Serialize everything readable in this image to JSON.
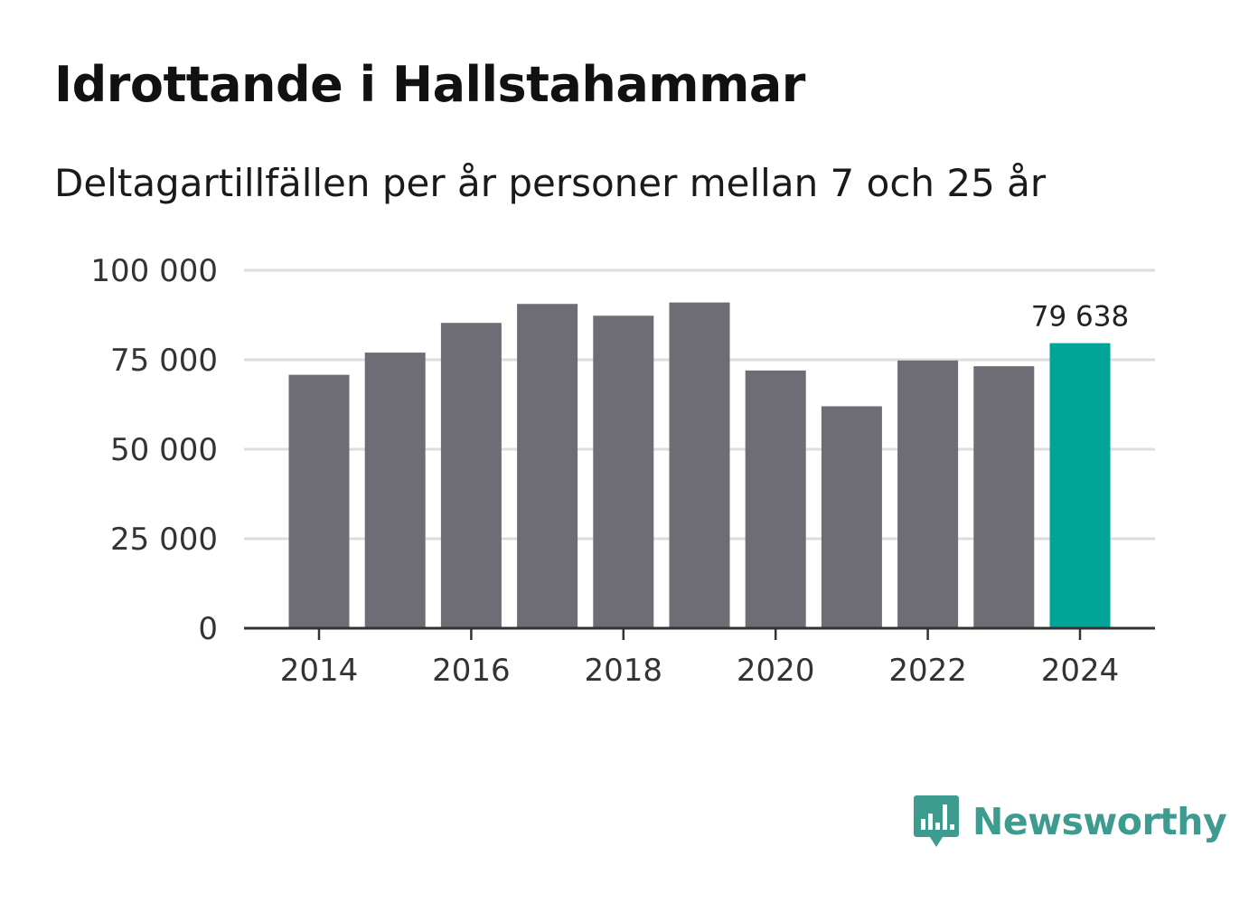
{
  "header": {
    "title": "Idrottande i Hallstahammar",
    "subtitle": "Deltagartillfällen per år personer mellan 7 och 25 år"
  },
  "colors": {
    "bar": "#6e6d75",
    "highlight": "#00a598",
    "grid": "#dddddd",
    "axis": "#333333",
    "brand": "#3d9b8f"
  },
  "chart_data": {
    "type": "bar",
    "title": "Idrottande i Hallstahammar",
    "subtitle": "Deltagartillfällen per år personer mellan 7 och 25 år",
    "xlabel": "",
    "ylabel": "",
    "categories": [
      "2014",
      "2015",
      "2016",
      "2017",
      "2018",
      "2019",
      "2020",
      "2021",
      "2022",
      "2023",
      "2024"
    ],
    "values": [
      70800,
      77000,
      85300,
      90600,
      87300,
      91000,
      72000,
      62000,
      74800,
      73200,
      79638
    ],
    "ylim": [
      0,
      100000
    ],
    "yticks": [
      0,
      25000,
      50000,
      75000,
      100000
    ],
    "ytick_labels": [
      "0",
      "25 000",
      "50 000",
      "75 000",
      "100 000"
    ],
    "xtick_labels": [
      "2014",
      "2016",
      "2018",
      "2020",
      "2022",
      "2024"
    ],
    "highlight_category": "2024",
    "annotation": "79 638",
    "grid": true
  },
  "brand": {
    "name": "Newsworthy",
    "icon": "bar-chart-speech-bubble-icon"
  }
}
